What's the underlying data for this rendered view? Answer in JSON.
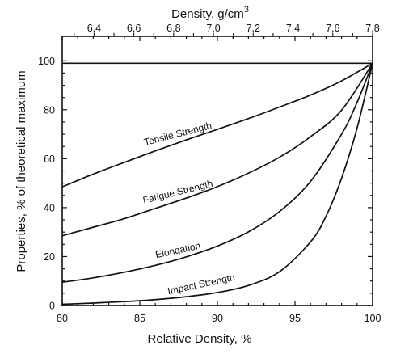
{
  "chart_data": {
    "type": "line",
    "xlabel": "Relative Density, %",
    "ylabel": "Properties, % of theoretical maximum",
    "top_xlabel": "Density, g/cm",
    "top_xlabel_superscript": "3",
    "xlim": [
      80,
      100
    ],
    "ylim": [
      0,
      110
    ],
    "xticks": [
      "80",
      "85",
      "90",
      "95",
      "100"
    ],
    "yticks": [
      "0",
      "20",
      "40",
      "60",
      "80",
      "100"
    ],
    "top_xticks": [
      "6,4",
      "6,6",
      "6,8",
      "7,0",
      "7,2",
      "7,4",
      "7,6",
      "7,8"
    ],
    "top_xtick_values": [
      6.4,
      6.6,
      6.8,
      7.0,
      7.2,
      7.4,
      7.6,
      7.8
    ],
    "top_axis_max_density": 7.8,
    "grid": false,
    "reference_line_y": 99,
    "series": [
      {
        "name": "Tensile Strength",
        "x": [
          80,
          82,
          84,
          86,
          88,
          90,
          92,
          94,
          96,
          98,
          100
        ],
        "y": [
          48.5,
          53.7,
          58.5,
          63.2,
          67.7,
          72.0,
          76.4,
          81.1,
          86.0,
          91.8,
          99
        ]
      },
      {
        "name": "Fatigue Strength",
        "x": [
          80,
          82,
          84,
          86,
          88,
          90,
          92,
          94,
          96,
          98,
          100
        ],
        "y": [
          28.5,
          32.0,
          35.5,
          39.7,
          43.9,
          48.6,
          54.1,
          60.6,
          69.0,
          79.8,
          99
        ]
      },
      {
        "name": "Elongation",
        "x": [
          80,
          82,
          84,
          86,
          88,
          90,
          92,
          94,
          96,
          98,
          99,
          100
        ],
        "y": [
          9.5,
          11.3,
          13.6,
          16.4,
          19.9,
          24.3,
          30.1,
          38.4,
          50.7,
          70.0,
          83.0,
          99
        ]
      },
      {
        "name": "Impact Strength",
        "x": [
          80,
          82,
          84,
          86,
          88,
          90,
          92,
          94,
          96,
          97,
          98,
          99,
          100
        ],
        "y": [
          0.5,
          1.0,
          1.6,
          2.4,
          3.6,
          5.3,
          8.2,
          13.8,
          26.0,
          36.5,
          52.0,
          72.5,
          99
        ]
      }
    ]
  }
}
